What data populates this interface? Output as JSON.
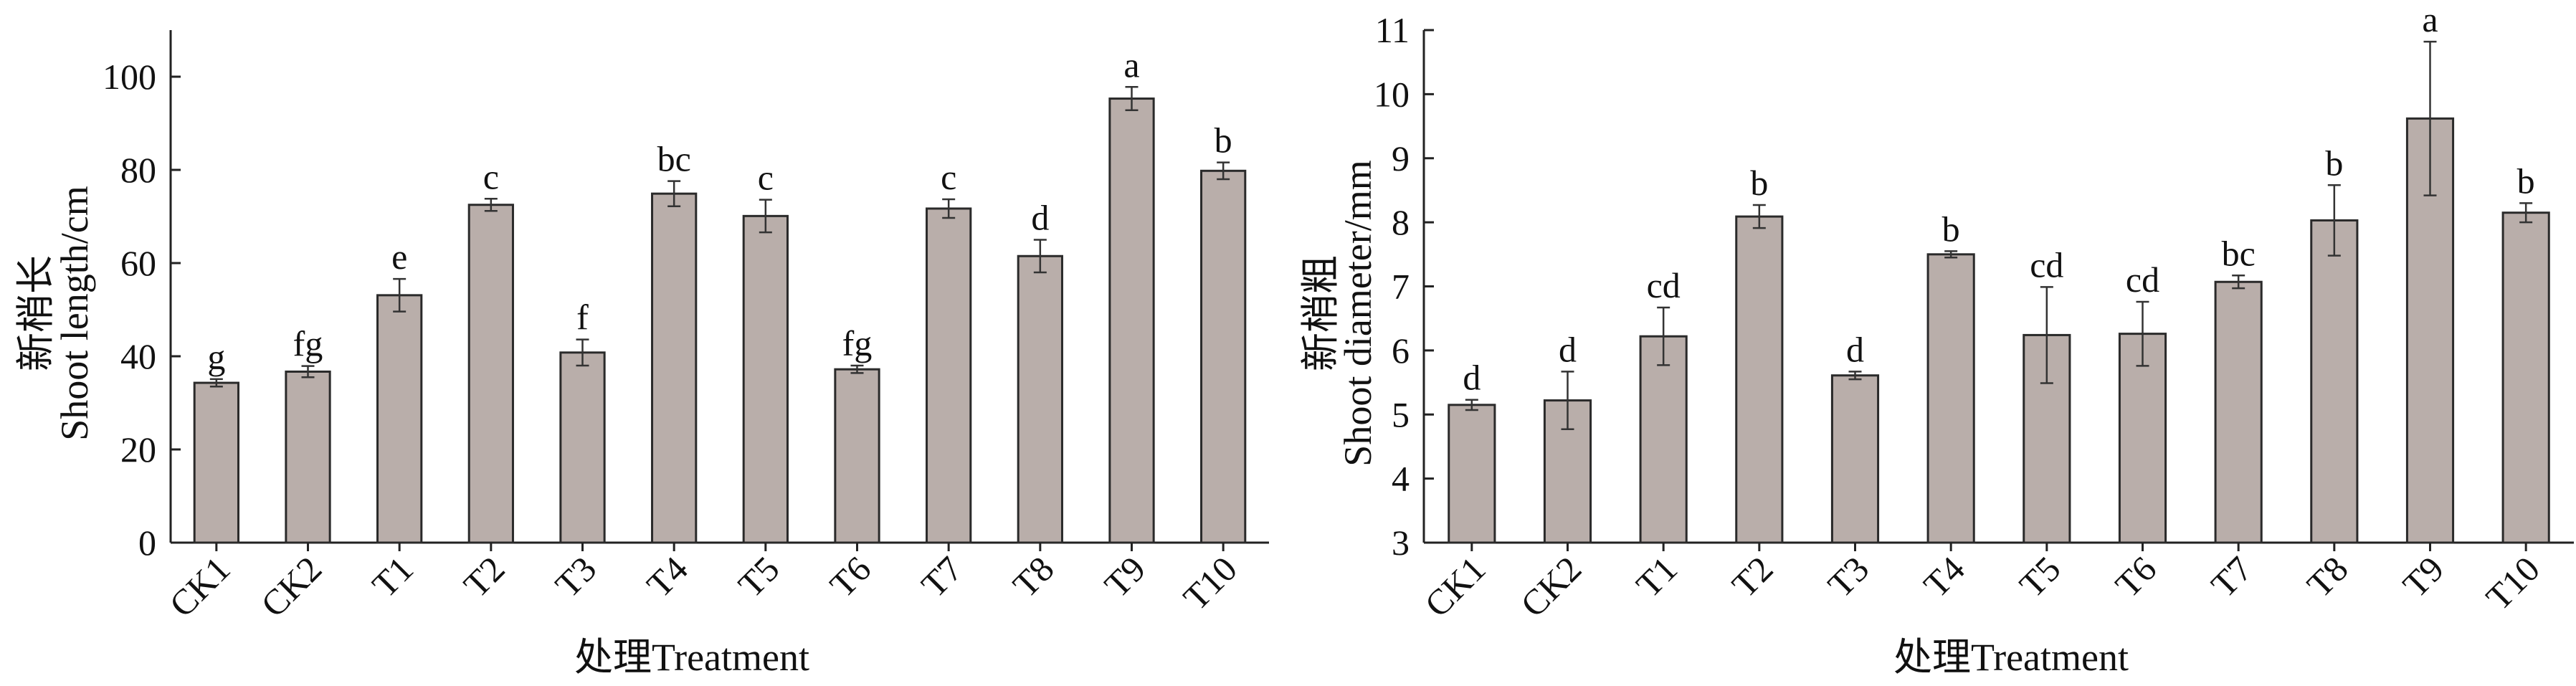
{
  "chart_data": [
    {
      "type": "bar",
      "categories": [
        "CK1",
        "CK2",
        "T1",
        "T2",
        "T3",
        "T4",
        "T5",
        "T6",
        "T7",
        "T8",
        "T9",
        "T10"
      ],
      "values": [
        34.3,
        36.7,
        53.1,
        72.5,
        40.8,
        74.9,
        70.1,
        37.2,
        71.7,
        61.5,
        95.3,
        79.8
      ],
      "errors": [
        0.8,
        1.2,
        3.5,
        1.3,
        2.8,
        2.7,
        3.5,
        0.8,
        2.0,
        3.5,
        2.5,
        1.8
      ],
      "significance": [
        "g",
        "fg",
        "e",
        "c",
        "f",
        "bc",
        "c",
        "fg",
        "c",
        "d",
        "a",
        "b"
      ],
      "ylabel_cn": "新梢长",
      "ylabel": "Shoot length/cm",
      "xlabel": "处理Treatment",
      "ylim": [
        0,
        110
      ],
      "yticks": [
        "0",
        "20",
        "40",
        "60",
        "80",
        "100"
      ],
      "ytick_values": [
        0,
        20,
        40,
        60,
        80,
        100
      ],
      "grid": false,
      "bar_color": "#b9aeaa"
    },
    {
      "type": "bar",
      "categories": [
        "CK1",
        "CK2",
        "T1",
        "T2",
        "T3",
        "T4",
        "T5",
        "T6",
        "T7",
        "T8",
        "T9",
        "T10"
      ],
      "values": [
        5.15,
        5.22,
        6.22,
        8.09,
        5.61,
        7.5,
        6.24,
        6.26,
        7.07,
        8.03,
        9.62,
        8.15
      ],
      "errors": [
        0.08,
        0.45,
        0.45,
        0.18,
        0.06,
        0.05,
        0.75,
        0.5,
        0.1,
        0.55,
        1.2,
        0.15
      ],
      "significance": [
        "d",
        "d",
        "cd",
        "b",
        "d",
        "b",
        "cd",
        "cd",
        "bc",
        "b",
        "a",
        "b"
      ],
      "ylabel_cn": "新梢粗",
      "ylabel": "Shoot diameter/mm",
      "xlabel": "处理Treatment",
      "ylim": [
        3,
        11
      ],
      "yticks": [
        "3",
        "4",
        "5",
        "6",
        "7",
        "8",
        "9",
        "10",
        "11"
      ],
      "ytick_values": [
        3,
        4,
        5,
        6,
        7,
        8,
        9,
        10,
        11
      ],
      "grid": false,
      "bar_color": "#b9aeaa"
    }
  ]
}
